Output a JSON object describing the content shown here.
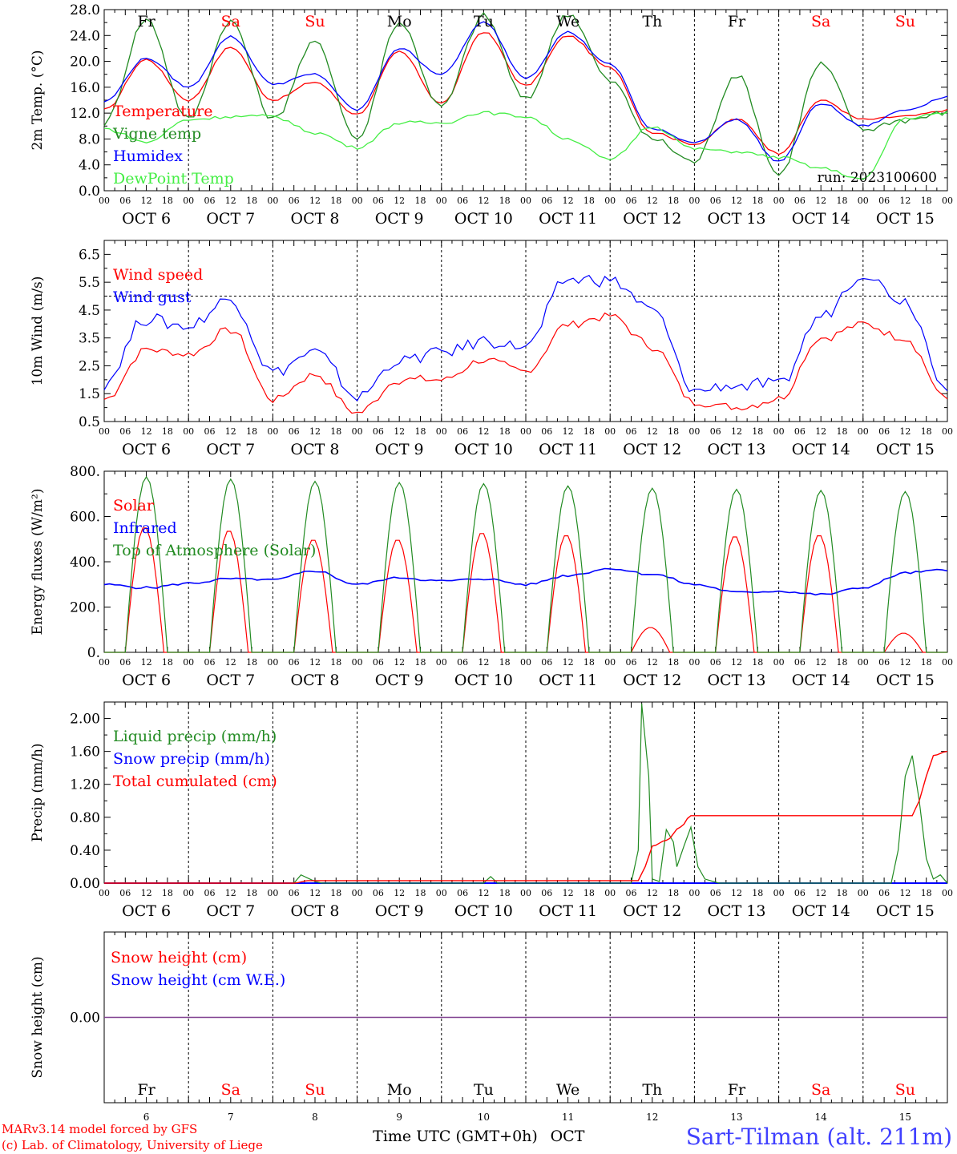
{
  "colors": {
    "red": "#ff0000",
    "green": "#228b22",
    "blue": "#0000ff",
    "lime": "#44ee44",
    "purple": "#7f3f8f",
    "weekend": "#ff0000",
    "weekday": "#000000"
  },
  "days": [
    {
      "abbr": "Fr",
      "date": "OCT  6",
      "num": "6",
      "weekend": false
    },
    {
      "abbr": "Sa",
      "date": "OCT  7",
      "num": "7",
      "weekend": true
    },
    {
      "abbr": "Su",
      "date": "OCT  8",
      "num": "8",
      "weekend": true
    },
    {
      "abbr": "Mo",
      "date": "OCT  9",
      "num": "9",
      "weekend": false
    },
    {
      "abbr": "Tu",
      "date": "OCT 10",
      "num": "10",
      "weekend": false
    },
    {
      "abbr": "We",
      "date": "OCT 11",
      "num": "11",
      "weekend": false
    },
    {
      "abbr": "Th",
      "date": "OCT 12",
      "num": "12",
      "weekend": false
    },
    {
      "abbr": "Fr",
      "date": "OCT 13",
      "num": "13",
      "weekend": false
    },
    {
      "abbr": "Sa",
      "date": "OCT 14",
      "num": "14",
      "weekend": true
    },
    {
      "abbr": "Su",
      "date": "OCT 15",
      "num": "15",
      "weekend": true
    }
  ],
  "hour_labels": [
    "00",
    "06",
    "12",
    "18"
  ],
  "hour_label_end": "00",
  "run_label": "run: 2023100600",
  "footer": {
    "left_line1": "MARv3.14 model forced by GFS",
    "left_line2": "(c) Lab. of Climatology, University of Liege",
    "xlabel": "Time UTC (GMT+0h)",
    "month": "OCT",
    "station": "Sart-Tilman (alt. 211m)"
  },
  "chart_data": [
    {
      "type": "line",
      "ylabel": "2m Temp. (°C)",
      "ylim": [
        0,
        28
      ],
      "yticks": [
        "0.0",
        "4.0",
        "8.0",
        "12.0",
        "16.0",
        "20.0",
        "24.0",
        "28.0"
      ],
      "x": [
        0,
        12,
        24,
        36,
        48,
        60,
        72,
        84,
        96,
        108,
        120,
        132,
        144,
        156,
        168,
        180,
        192,
        204,
        216,
        228,
        240
      ],
      "x_unit": "hours since OCT 6 00 UTC",
      "series": [
        {
          "name": "Temperature",
          "color": "red",
          "values": [
            12.5,
            20.3,
            14.0,
            22.2,
            14.0,
            16.8,
            11.8,
            21.5,
            13.5,
            24.6,
            16.2,
            24.0,
            19.0,
            9.0,
            7.2,
            11.1,
            5.8,
            14.0,
            11.0,
            11.5,
            12.4
          ]
        },
        {
          "name": "Vigne temp",
          "color": "green",
          "values": [
            10.5,
            26.5,
            11.0,
            26.2,
            11.0,
            23.0,
            8.0,
            26.0,
            13.0,
            27.0,
            14.0,
            27.5,
            17.0,
            8.0,
            4.5,
            18.0,
            2.5,
            19.5,
            9.5,
            11.0,
            12.0
          ]
        },
        {
          "name": "Humidex",
          "color": "blue",
          "values": [
            13.8,
            20.5,
            16.0,
            23.8,
            16.5,
            18.0,
            12.5,
            22.0,
            18.0,
            26.0,
            17.5,
            24.5,
            19.5,
            9.5,
            7.5,
            11.0,
            4.5,
            13.5,
            10.0,
            12.5,
            14.5
          ]
        },
        {
          "name": "DewPoint Temp",
          "color": "lime",
          "values": [
            9.6,
            7.5,
            11.0,
            11.5,
            11.5,
            9.0,
            6.7,
            10.5,
            10.5,
            12.1,
            11.5,
            8.0,
            4.8,
            10.0,
            6.5,
            6.0,
            5.2,
            3.5,
            1.8,
            11.2,
            12.0
          ]
        }
      ]
    },
    {
      "type": "line",
      "ylabel": "10m Wind (m/s)",
      "ylim": [
        0.5,
        7.0
      ],
      "yticks": [
        "0.5",
        "1.5",
        "2.5",
        "3.5",
        "4.5",
        "5.5",
        "6.5"
      ],
      "reference_line": 5.0,
      "x": [
        0,
        12,
        24,
        36,
        48,
        60,
        72,
        84,
        96,
        108,
        120,
        132,
        144,
        156,
        168,
        180,
        192,
        204,
        216,
        228,
        240
      ],
      "x_unit": "hours since OCT 6 00 UTC",
      "series": [
        {
          "name": "Wind speed",
          "color": "red",
          "values": [
            1.3,
            3.1,
            2.9,
            3.8,
            1.3,
            2.2,
            0.8,
            2.0,
            2.0,
            2.7,
            2.3,
            4.0,
            4.3,
            3.2,
            1.2,
            1.0,
            1.3,
            3.5,
            4.0,
            3.5,
            1.3
          ]
        },
        {
          "name": "Wind gust",
          "color": "blue",
          "values": [
            1.9,
            4.2,
            3.9,
            4.9,
            2.3,
            3.0,
            1.4,
            2.7,
            3.0,
            3.4,
            3.2,
            5.6,
            5.6,
            4.5,
            1.6,
            1.8,
            1.8,
            4.3,
            5.8,
            4.8,
            1.8
          ]
        }
      ]
    },
    {
      "type": "line",
      "ylabel": "Energy fluxes (W/m²)",
      "ylim": [
        0,
        800
      ],
      "yticks": [
        "0.",
        "200.",
        "400.",
        "600.",
        "800."
      ],
      "x_unit": "hours since OCT 6 00 UTC",
      "series": [
        {
          "name": "Solar",
          "color": "red",
          "daily_peak": [
            555,
            540,
            500,
            500,
            530,
            520,
            110,
            515,
            520,
            85
          ],
          "daylight_hours": [
            6,
            17
          ]
        },
        {
          "name": "Infrared",
          "color": "blue",
          "x": [
            0,
            12,
            24,
            36,
            48,
            60,
            72,
            84,
            96,
            108,
            120,
            132,
            144,
            156,
            168,
            180,
            192,
            204,
            216,
            228,
            240
          ],
          "values": [
            300,
            285,
            305,
            325,
            320,
            360,
            300,
            330,
            315,
            325,
            300,
            340,
            370,
            345,
            300,
            265,
            270,
            255,
            285,
            350,
            365
          ]
        },
        {
          "name": "Top of Atmosphere (Solar)",
          "color": "green",
          "daily_peak": [
            775,
            765,
            755,
            750,
            745,
            735,
            725,
            720,
            715,
            710
          ],
          "daylight_hours": [
            6,
            18
          ]
        }
      ]
    },
    {
      "type": "line",
      "ylabel": "Precip (mm/h)",
      "ylim": [
        0,
        2.2
      ],
      "yticks": [
        "0.00",
        "0.40",
        "0.80",
        "1.20",
        "1.60",
        "2.00"
      ],
      "x_unit": "hours since OCT 6 00 UTC",
      "series": [
        {
          "name": "Liquid precip (mm/h)",
          "color": "green",
          "x": [
            0,
            54,
            56,
            60,
            62,
            108,
            110,
            112,
            150,
            152,
            153,
            155,
            156,
            158,
            160,
            162,
            163,
            165,
            167,
            169,
            171,
            175,
            224,
            226,
            228,
            230,
            232,
            234,
            236,
            238,
            240
          ],
          "values": [
            0,
            0,
            0.1,
            0.02,
            0,
            0,
            0.08,
            0,
            0,
            0.4,
            2.18,
            1.3,
            0.05,
            0.02,
            0.65,
            0.5,
            0.2,
            0.45,
            0.68,
            0.2,
            0.05,
            0,
            0,
            0.4,
            1.3,
            1.55,
            1.0,
            0.3,
            0.05,
            0.1,
            0.0
          ]
        },
        {
          "name": "Snow precip (mm/h)",
          "color": "blue",
          "x": [
            0,
            240
          ],
          "values": [
            0,
            0
          ]
        },
        {
          "name": "Total cumulated (cm)",
          "color": "red",
          "x": [
            0,
            54,
            58,
            152,
            154,
            156,
            160,
            164,
            167,
            170,
            230,
            232,
            234,
            236,
            240
          ],
          "values": [
            0,
            0,
            0.03,
            0.03,
            0.2,
            0.45,
            0.52,
            0.68,
            0.82,
            0.82,
            0.82,
            1.0,
            1.3,
            1.55,
            1.6
          ]
        }
      ]
    },
    {
      "type": "line",
      "ylabel": "Snow height (cm)",
      "yticks": [
        "0.00"
      ],
      "x_unit": "hours since OCT 6 00 UTC",
      "series": [
        {
          "name": "Snow height (cm)",
          "color": "red",
          "x": [
            0,
            240
          ],
          "values": [
            0,
            0
          ]
        },
        {
          "name": "Snow height (cm W.E.)",
          "color": "blue",
          "x": [
            0,
            240
          ],
          "values": [
            0,
            0
          ]
        }
      ]
    }
  ]
}
